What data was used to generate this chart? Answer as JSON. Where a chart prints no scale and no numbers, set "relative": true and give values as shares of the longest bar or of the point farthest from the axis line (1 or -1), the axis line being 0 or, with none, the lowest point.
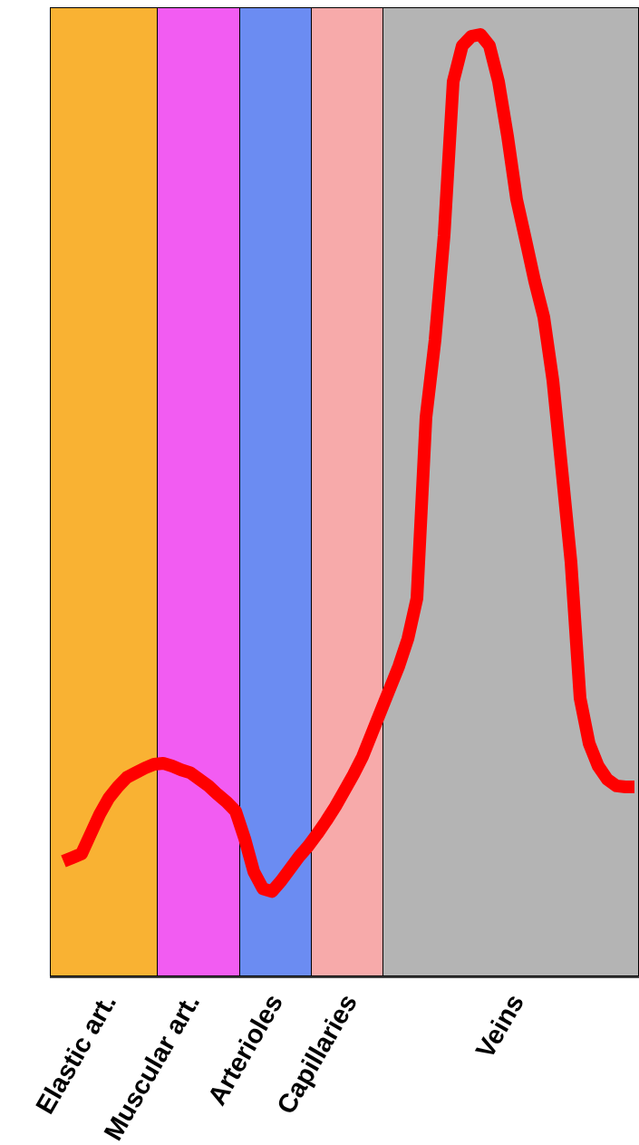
{
  "chart_data": {
    "type": "line",
    "relative": true,
    "marker": "none",
    "line_style": "solid",
    "categories": [
      null,
      null,
      null,
      null,
      null,
      null,
      null,
      null,
      null,
      null,
      null,
      null,
      null,
      null,
      null,
      null,
      null,
      null,
      null,
      null,
      null,
      null,
      null,
      null,
      null,
      null,
      null,
      null,
      null,
      null,
      null,
      null,
      null,
      null,
      null,
      null,
      null,
      null,
      null,
      null,
      null,
      null,
      null,
      null,
      null,
      null,
      null,
      null,
      null,
      null,
      null,
      null,
      null,
      null,
      null,
      null,
      null,
      null,
      null,
      null,
      null,
      null,
      null,
      null
    ],
    "series": [
      {
        "color": "#ff0000",
        "values": [
          0.123,
          0.127,
          0.131,
          0.152,
          0.173,
          0.19,
          0.202,
          0.212,
          0.217,
          0.222,
          0.226,
          0.227,
          0.224,
          0.22,
          0.217,
          0.21,
          0.203,
          0.194,
          0.186,
          0.176,
          0.147,
          0.112,
          0.094,
          0.091,
          0.102,
          0.115,
          0.128,
          0.139,
          0.152,
          0.166,
          0.181,
          0.198,
          0.215,
          0.234,
          0.258,
          0.282,
          0.306,
          0.33,
          0.359,
          0.402,
          0.594,
          0.676,
          0.787,
          0.95,
          0.988,
          0.998,
          1.0,
          0.988,
          0.95,
          0.892,
          0.825,
          0.782,
          0.738,
          0.7,
          0.633,
          0.537,
          0.44,
          0.296,
          0.248,
          0.224,
          0.21,
          0.203,
          0.202,
          0.202
        ]
      }
    ],
    "annotations": [
      "Elastic art.",
      "Muscular art.",
      "Arterioles",
      "Capillaries",
      "Veins"
    ]
  }
}
